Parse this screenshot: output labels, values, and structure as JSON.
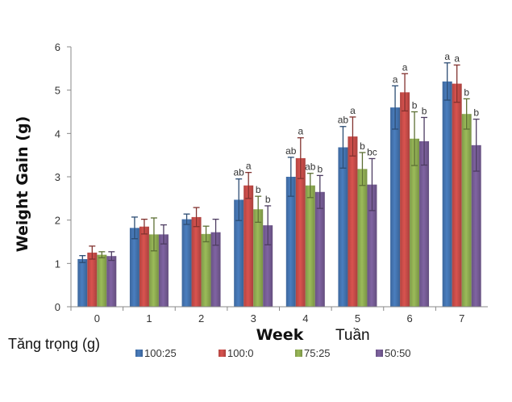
{
  "chart_data": {
    "type": "bar",
    "ylabel": "Weight Gain (g)",
    "ylabel_secondary": "Tăng trọng (g)",
    "xlabel": "Week",
    "xlabel_secondary": "Tuần",
    "ylim": [
      0,
      6
    ],
    "yticks": [
      "0",
      "1",
      "2",
      "3",
      "4",
      "5",
      "6"
    ],
    "categories": [
      "0",
      "1",
      "2",
      "3",
      "4",
      "5",
      "6",
      "7"
    ],
    "grid": false,
    "legend_position": "bottom",
    "series": [
      {
        "name": "100:25",
        "color": "#4a7ebf",
        "values": [
          1.1,
          1.82,
          2.02,
          2.47,
          3.0,
          3.68,
          4.6,
          5.2
        ],
        "errors": [
          0.08,
          0.25,
          0.12,
          0.48,
          0.45,
          0.48,
          0.5,
          0.43
        ],
        "labels": [
          "",
          "",
          "",
          "ab",
          "ab",
          "ab",
          "a",
          "a"
        ]
      },
      {
        "name": "100:0",
        "color": "#d9534f",
        "values": [
          1.25,
          1.85,
          2.07,
          2.8,
          3.43,
          3.93,
          4.95,
          5.15
        ],
        "errors": [
          0.15,
          0.17,
          0.22,
          0.3,
          0.47,
          0.45,
          0.43,
          0.43
        ],
        "labels": [
          "",
          "",
          "",
          "a",
          "a",
          "a",
          "a",
          "a"
        ]
      },
      {
        "name": "75:25",
        "color": "#9bbb59",
        "values": [
          1.2,
          1.67,
          1.68,
          2.25,
          2.8,
          3.18,
          3.88,
          4.45
        ],
        "errors": [
          0.07,
          0.38,
          0.18,
          0.3,
          0.28,
          0.38,
          0.62,
          0.35
        ],
        "labels": [
          "",
          "",
          "",
          "b",
          "ab",
          "b",
          "b",
          "b"
        ]
      },
      {
        "name": "50:50",
        "color": "#8064a2",
        "values": [
          1.17,
          1.67,
          1.72,
          1.88,
          2.65,
          2.82,
          3.82,
          3.73
        ],
        "errors": [
          0.1,
          0.22,
          0.3,
          0.45,
          0.38,
          0.6,
          0.55,
          0.6
        ],
        "labels": [
          "",
          "",
          "",
          "b",
          "b",
          "bc",
          "b",
          "b"
        ]
      }
    ]
  }
}
